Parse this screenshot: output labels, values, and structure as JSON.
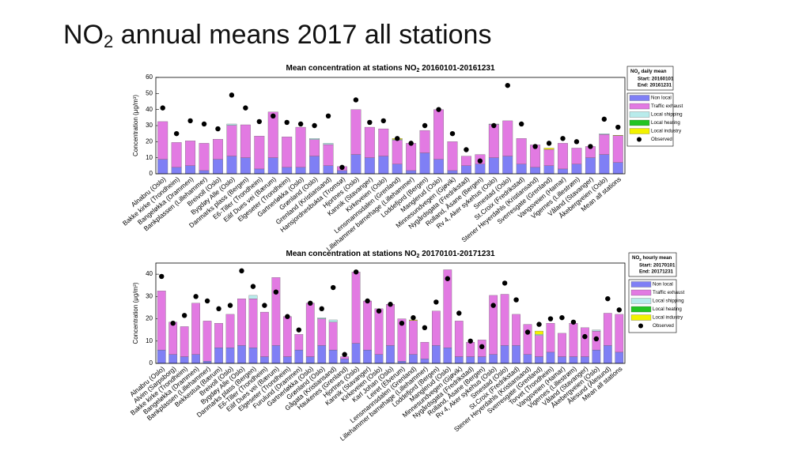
{
  "slide_title": {
    "prefix": "NO",
    "subscript": "2",
    "suffix": " annual means 2017 all stations"
  },
  "chart_data": [
    {
      "type": "stacked-bar",
      "title": {
        "prefix": "Mean concentration at stations NO",
        "subscript": "2",
        "suffix": " 20160101-20161231"
      },
      "y_label": "Concentration (μg/m³)",
      "legend_title": {
        "prefix": "NO",
        "subscript": "2",
        "suffix": " daily mean",
        "start": "Start: 20160101",
        "end": "End:  20161231"
      },
      "categories": [
        "Alnabru (Oslo)",
        "Bakke kirke (Trondheim)",
        "Bangeløkka (Drammen)",
        "Bankplassen (Lillehammer)",
        "Breivoll (Oslo)",
        "Bygdøy Alle (Oslo)",
        "Danmarks plass (Bergen)",
        "E6-Tiller (Trondheim)",
        "Eilif Dues vei (Bærum)",
        "Elgeseter (Trondheim)",
        "Gartnerløkka (Oslo)",
        "Grønland (Oslo)",
        "Grenland (Kristiansand)",
        "Hansjordnesbukta (Tromsø)",
        "Hjortnes (Oslo)",
        "Kannik (Stavanger)",
        "Kirkeveien (Oslo)",
        "Lensmannsdalen (Grenland)",
        "Lillehammer barnehage (Lillehammer)",
        "Loddefjord (Bergen)",
        "Manglerud (Oslo)",
        "Minnesundvegen (Gjøvik)",
        "Nygårdsgata (Fredrikstad)",
        "Rolland, Åsane (Bergen)",
        "Rv 4, Aker sykehus (Oslo)",
        "Smestad (Oslo)",
        "St.Croix (Fredrikstad)",
        "Stener Heyerdahls (Kristiansand)",
        "Sverresgate (Grenland)",
        "Vangsveien (Hamar)",
        "Vigernes (Lillestrøm)",
        "Våland (Stavanger)",
        "Åkebergveien (Oslo)",
        "Mean all stations"
      ],
      "series": [
        {
          "name": "Non local",
          "color": "#7f7ff5",
          "values": [
            9,
            4,
            5,
            2,
            9,
            11,
            10,
            3,
            10,
            4,
            4,
            11,
            5,
            2,
            12,
            10,
            11,
            6,
            2,
            13,
            9,
            2,
            5,
            6,
            10,
            11,
            6,
            4,
            5,
            3,
            6,
            10,
            12,
            7
          ]
        },
        {
          "name": "Traffic exhaust",
          "color": "#e27ae2",
          "values": [
            23.5,
            15.5,
            15.5,
            17,
            12.5,
            19.2,
            20.5,
            20.5,
            28.5,
            19,
            25,
            10.3,
            13.2,
            2.5,
            28,
            19,
            17,
            14.9,
            17,
            14,
            31,
            18,
            6,
            6,
            20.7,
            22,
            16,
            14,
            10.2,
            16,
            10,
            7,
            12.5,
            16.7
          ]
        },
        {
          "name": "Local shipping",
          "color": "#b8ebeb",
          "values": [
            0,
            0,
            0,
            0,
            0,
            0.8,
            0,
            0,
            0,
            0,
            0,
            0.7,
            0.8,
            0,
            0,
            0,
            0,
            0.5,
            0,
            0,
            0,
            0,
            0,
            0,
            0.3,
            0,
            0,
            0,
            0,
            0,
            0,
            0,
            0.5,
            0
          ]
        },
        {
          "name": "Local heating",
          "color": "#22c422",
          "values": [
            0,
            0,
            0,
            0,
            0,
            0,
            0,
            0,
            0,
            0,
            0,
            0,
            0,
            0,
            0,
            0,
            0,
            0,
            0,
            0,
            0,
            0,
            0,
            0,
            0,
            0,
            0,
            0,
            0,
            0,
            0,
            0,
            0,
            0
          ]
        },
        {
          "name": "Local industry",
          "color": "#f2f200",
          "values": [
            0,
            0,
            0,
            0,
            0,
            0,
            0,
            0,
            0,
            0,
            0,
            0,
            0,
            0,
            0,
            0,
            0,
            0.6,
            0,
            0,
            0,
            0,
            0,
            0,
            0,
            0,
            0,
            0,
            0.8,
            0,
            0,
            0,
            0,
            0.3
          ]
        }
      ],
      "observed": {
        "name": "Observed",
        "color": "#000000",
        "values": [
          41,
          25,
          33,
          31,
          28,
          49,
          41,
          32.5,
          36,
          32,
          31,
          30,
          36,
          4,
          46,
          32,
          33,
          22,
          19,
          30,
          40,
          25,
          15,
          8,
          30,
          55,
          31,
          17,
          19,
          22,
          20,
          17,
          34,
          29
        ]
      },
      "ylim": [
        0,
        60
      ],
      "yticks": [
        0,
        10,
        20,
        30,
        40,
        50,
        60
      ]
    },
    {
      "type": "stacked-bar",
      "title": {
        "prefix": "Mean concentration at stations NO",
        "subscript": "2",
        "suffix": " 20170101-20171231"
      },
      "y_label": "Concentration (μg/m³)",
      "legend_title": {
        "prefix": "NO",
        "subscript": "2",
        "suffix": " hourly mean",
        "start": "Start: 20170101",
        "end": "End:  20171231"
      },
      "categories": [
        "Alnabru (Oslo)",
        "Alvim (Sarpsborg)",
        "Bakke kirke (Trondheim)",
        "Bangeløkka (Drammen)",
        "Bankplassen (Lillehammer)",
        "Bekkestua (Bærum)",
        "Breivoll (Oslo)",
        "Bygdøy Alle (Oslo)",
        "Danmarks plass (Bergen)",
        "E6-Tiller (Trondheim)",
        "Eilif Dues vei (Bærum)",
        "Elgeseter (Trondheim)",
        "Furulund (Drammen)",
        "Gartnerløkka (Oslo)",
        "Grønland (Oslo)",
        "Gågata (Kristiansand)",
        "Haukenes (Grenland)",
        "Hjortnes (Oslo)",
        "Kannik (Stavanger)",
        "Kirkeveien (Oslo)",
        "Karl Johan (Oslo)",
        "Leiret (Elverum)",
        "Lensmannsdalen (Grenland)",
        "Lillehammer barnehage (Lillehammer)",
        "Loddefjord (Bergen)",
        "Manglerud (Oslo)",
        "Minnesundvegen (Gjøvik)",
        "Nygårdsgata (Fredrikstad)",
        "Rolland, Åsane (Bergen)",
        "Rv 4, Aker sykehus (Oslo)",
        "Smestad (Oslo)",
        "St.Croix (Fredrikstad)",
        "Stener Heyerdahls (Kristiansand)",
        "Sverresgate (Grenland)",
        "Torvet (Trondheim)",
        "Vangsveien (Hamar)",
        "Vigernes (Lillestrøm)",
        "Våland (Stavanger)",
        "Åkebergveien (Oslo)",
        "Ålesund (Ålesund)",
        "Mean all stations"
      ],
      "series": [
        {
          "name": "Non local",
          "color": "#7f7ff5",
          "values": [
            6,
            4,
            3,
            4,
            1,
            7,
            7,
            8,
            7,
            3,
            8,
            3,
            6,
            3,
            8,
            6,
            2,
            9,
            6,
            4,
            8,
            1,
            4,
            2,
            8,
            7,
            3,
            3,
            3,
            4,
            8,
            8,
            4,
            3,
            5,
            3,
            3,
            3,
            6,
            8,
            5
          ]
        },
        {
          "name": "Traffic exhaust",
          "color": "#e27ae2",
          "values": [
            26.5,
            14.5,
            13.5,
            23,
            18,
            11,
            15,
            21,
            22,
            20,
            30.5,
            18,
            7,
            24,
            12,
            12.5,
            1,
            32,
            22,
            20.5,
            18.5,
            19,
            15.2,
            7.5,
            15.5,
            35,
            16,
            6.5,
            7.5,
            26.5,
            23,
            14,
            13.5,
            9.5,
            13,
            10.5,
            15,
            13,
            8.5,
            14.5,
            17
          ]
        },
        {
          "name": "Local shipping",
          "color": "#b8ebeb",
          "values": [
            0,
            0,
            0,
            0,
            0,
            0,
            0,
            0,
            1.5,
            0,
            0,
            0,
            0,
            0,
            0.5,
            1,
            0,
            0,
            0,
            0,
            0,
            0,
            0,
            0,
            0,
            0,
            0,
            0,
            0,
            0,
            0,
            0,
            0,
            0.5,
            0,
            0,
            0,
            0,
            0.5,
            0,
            0
          ]
        },
        {
          "name": "Local heating",
          "color": "#22c422",
          "values": [
            0,
            0,
            0,
            0,
            0,
            0,
            0,
            0,
            0,
            0,
            0,
            0,
            0,
            0,
            0,
            0,
            0,
            0,
            0,
            0,
            0,
            0,
            0,
            0,
            0,
            0,
            0,
            0,
            0,
            0,
            0,
            0,
            0,
            0,
            0,
            0,
            0,
            0,
            0,
            0,
            0
          ]
        },
        {
          "name": "Local industry",
          "color": "#f2f200",
          "values": [
            0,
            0,
            0,
            0,
            0,
            0,
            0,
            0,
            0,
            0,
            0,
            0,
            0,
            0,
            0,
            0,
            0,
            0,
            0,
            0,
            0,
            0,
            0.3,
            0,
            0,
            0,
            0,
            0,
            0,
            0,
            0,
            0,
            0,
            1.5,
            0,
            0,
            0,
            0,
            0,
            0,
            0
          ]
        }
      ],
      "observed": {
        "name": "Observed",
        "color": "#000000",
        "values": [
          39,
          18,
          21.5,
          30,
          28,
          24.5,
          26,
          41.5,
          34.5,
          26,
          32,
          21,
          15,
          27,
          24.5,
          34,
          4,
          41,
          28,
          23.5,
          26.5,
          18,
          20.5,
          16,
          27.5,
          38,
          22.5,
          10,
          7.5,
          26,
          36,
          28.5,
          14,
          17.5,
          20,
          20.5,
          18.5,
          12,
          11,
          29,
          24
        ]
      },
      "ylim": [
        0,
        45
      ],
      "yticks": [
        0,
        10,
        20,
        30,
        40
      ]
    }
  ]
}
